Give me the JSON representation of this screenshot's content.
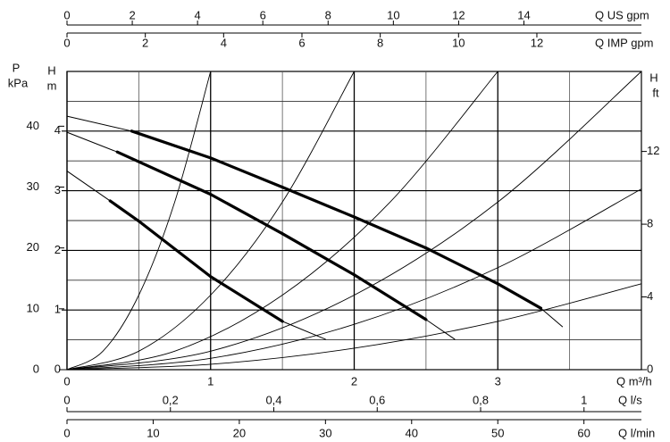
{
  "chart_data": {
    "type": "line",
    "x_label": "Q m³/h",
    "y_label": "H",
    "y_unit": "m",
    "xlim": [
      0,
      4
    ],
    "xticks": [
      0,
      1,
      2,
      3
    ],
    "ylim": [
      0,
      5
    ],
    "yticks": [
      0,
      1,
      2,
      3,
      4
    ],
    "x_minor_grid": [
      0.5,
      1.5,
      2.5,
      3.5
    ],
    "y_minor_grid": [
      0.5,
      1.5,
      2.5,
      3.5,
      4.5
    ],
    "grid": true,
    "extra_axes": [
      {
        "name": "Q US gpm",
        "side": "top",
        "lim": [
          0,
          17.6
        ],
        "ticks": [
          0,
          2,
          4,
          6,
          8,
          10,
          12,
          14
        ]
      },
      {
        "name": "Q IMP gpm",
        "side": "top",
        "lim": [
          0,
          14.67
        ],
        "ticks": [
          0,
          2,
          4,
          6,
          8,
          10,
          12
        ]
      },
      {
        "name": "Q l/s",
        "side": "bottom",
        "lim": [
          0,
          1.111
        ],
        "ticks": [
          0,
          {
            "value": 0.2,
            "label": "0,2"
          },
          {
            "value": 0.4,
            "label": "0,4"
          },
          {
            "value": 0.6,
            "label": "0,6"
          },
          {
            "value": 0.8,
            "label": "0,8"
          },
          1
        ]
      },
      {
        "name": "Q l/min",
        "side": "bottom",
        "lim": [
          0,
          66.67
        ],
        "ticks": [
          0,
          10,
          20,
          30,
          40,
          50,
          60
        ]
      },
      {
        "name": "P",
        "unit": "kPa",
        "side": "left",
        "lim": [
          0,
          49
        ],
        "ticks": [
          0,
          10,
          20,
          30,
          40
        ]
      },
      {
        "name": "H",
        "unit": "ft",
        "side": "right",
        "lim": [
          0,
          16.4
        ],
        "ticks": [
          0,
          4,
          8,
          12
        ]
      }
    ],
    "series": [
      {
        "color": "#000000",
        "line_width": 3.2,
        "x": [
          0,
          0.45,
          1,
          1.5,
          2,
          2.5,
          3,
          3.3,
          3.45
        ],
        "values": [
          4.25,
          4.0,
          3.55,
          3.06,
          2.56,
          2.04,
          1.44,
          1.03,
          0.72
        ]
      },
      {
        "color": "#000000",
        "line_width": 3.2,
        "x": [
          0,
          0.35,
          1,
          1.5,
          2,
          2.5,
          2.7
        ],
        "values": [
          3.98,
          3.65,
          2.94,
          2.28,
          1.59,
          0.84,
          0.51
        ]
      },
      {
        "color": "#000000",
        "line_width": 3.2,
        "x": [
          0,
          0.3,
          0.5,
          1,
          1.5,
          1.8
        ],
        "values": [
          3.33,
          2.83,
          2.49,
          1.56,
          0.81,
          0.51
        ]
      },
      {
        "color": "#000000",
        "line_width": 0.9,
        "x": [
          0,
          0.25,
          0.5,
          0.75,
          1.0
        ],
        "values": [
          0,
          0.31,
          1.25,
          2.81,
          5
        ]
      },
      {
        "color": "#000000",
        "line_width": 0.9,
        "x": [
          0,
          0.5,
          1,
          1.5,
          2
        ],
        "values": [
          0,
          0.31,
          1.25,
          2.81,
          5
        ]
      },
      {
        "color": "#000000",
        "line_width": 0.9,
        "x": [
          0,
          0.75,
          1.5,
          2.25,
          3
        ],
        "values": [
          0,
          0.31,
          1.25,
          2.81,
          5
        ]
      },
      {
        "color": "#000000",
        "line_width": 0.9,
        "x": [
          0,
          1,
          2,
          3,
          4
        ],
        "values": [
          0,
          0.31,
          1.25,
          2.81,
          5
        ]
      },
      {
        "color": "#000000",
        "line_width": 0.9,
        "x": [
          0,
          1,
          2,
          3,
          4
        ],
        "values": [
          0,
          0.19,
          0.76,
          1.71,
          3.03
        ]
      },
      {
        "color": "#000000",
        "line_width": 0.9,
        "x": [
          0,
          1,
          2,
          3,
          4
        ],
        "values": [
          0,
          0.09,
          0.36,
          0.81,
          1.44
        ]
      }
    ]
  }
}
